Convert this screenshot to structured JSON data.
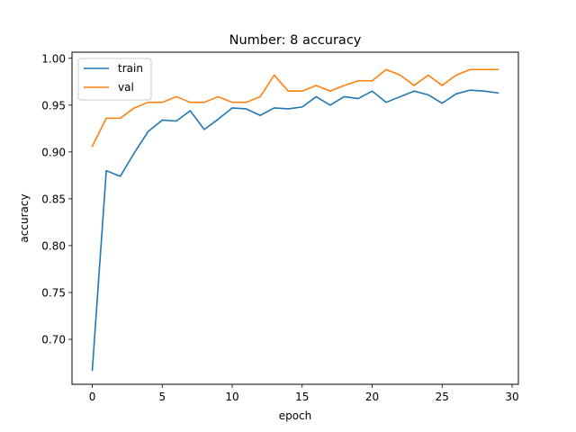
{
  "chart_data": {
    "type": "line",
    "title": "Number: 8 accuracy",
    "xlabel": "epoch",
    "ylabel": "accuracy",
    "xlim": [
      -1.45,
      30.45
    ],
    "ylim": [
      0.652,
      1.0065
    ],
    "xticks": [
      0,
      5,
      10,
      15,
      20,
      25,
      30
    ],
    "yticks": [
      0.7,
      0.75,
      0.8,
      0.85,
      0.9,
      0.95,
      1.0
    ],
    "xtick_labels": [
      "0",
      "5",
      "10",
      "15",
      "20",
      "25",
      "30"
    ],
    "ytick_labels": [
      "0.70",
      "0.75",
      "0.80",
      "0.85",
      "0.90",
      "0.95",
      "1.00"
    ],
    "grid": false,
    "legend_position": "top-left",
    "x": [
      0,
      1,
      2,
      3,
      4,
      5,
      6,
      7,
      8,
      9,
      10,
      11,
      12,
      13,
      14,
      15,
      16,
      17,
      18,
      19,
      20,
      21,
      22,
      23,
      24,
      25,
      26,
      27,
      28,
      29
    ],
    "series": [
      {
        "name": "train",
        "color": "#1f77b4",
        "values": [
          0.667,
          0.88,
          0.874,
          0.899,
          0.922,
          0.934,
          0.933,
          0.944,
          0.924,
          0.935,
          0.947,
          0.946,
          0.939,
          0.947,
          0.946,
          0.948,
          0.959,
          0.95,
          0.959,
          0.957,
          0.965,
          0.953,
          0.959,
          0.965,
          0.961,
          0.952,
          0.962,
          0.966,
          0.965,
          0.963
        ]
      },
      {
        "name": "val",
        "color": "#ff7f0e",
        "values": [
          0.906,
          0.936,
          0.936,
          0.947,
          0.953,
          0.953,
          0.959,
          0.953,
          0.953,
          0.959,
          0.953,
          0.953,
          0.959,
          0.982,
          0.965,
          0.965,
          0.971,
          0.965,
          0.971,
          0.976,
          0.976,
          0.988,
          0.982,
          0.971,
          0.982,
          0.971,
          0.982,
          0.988,
          0.988,
          0.988
        ]
      }
    ]
  }
}
